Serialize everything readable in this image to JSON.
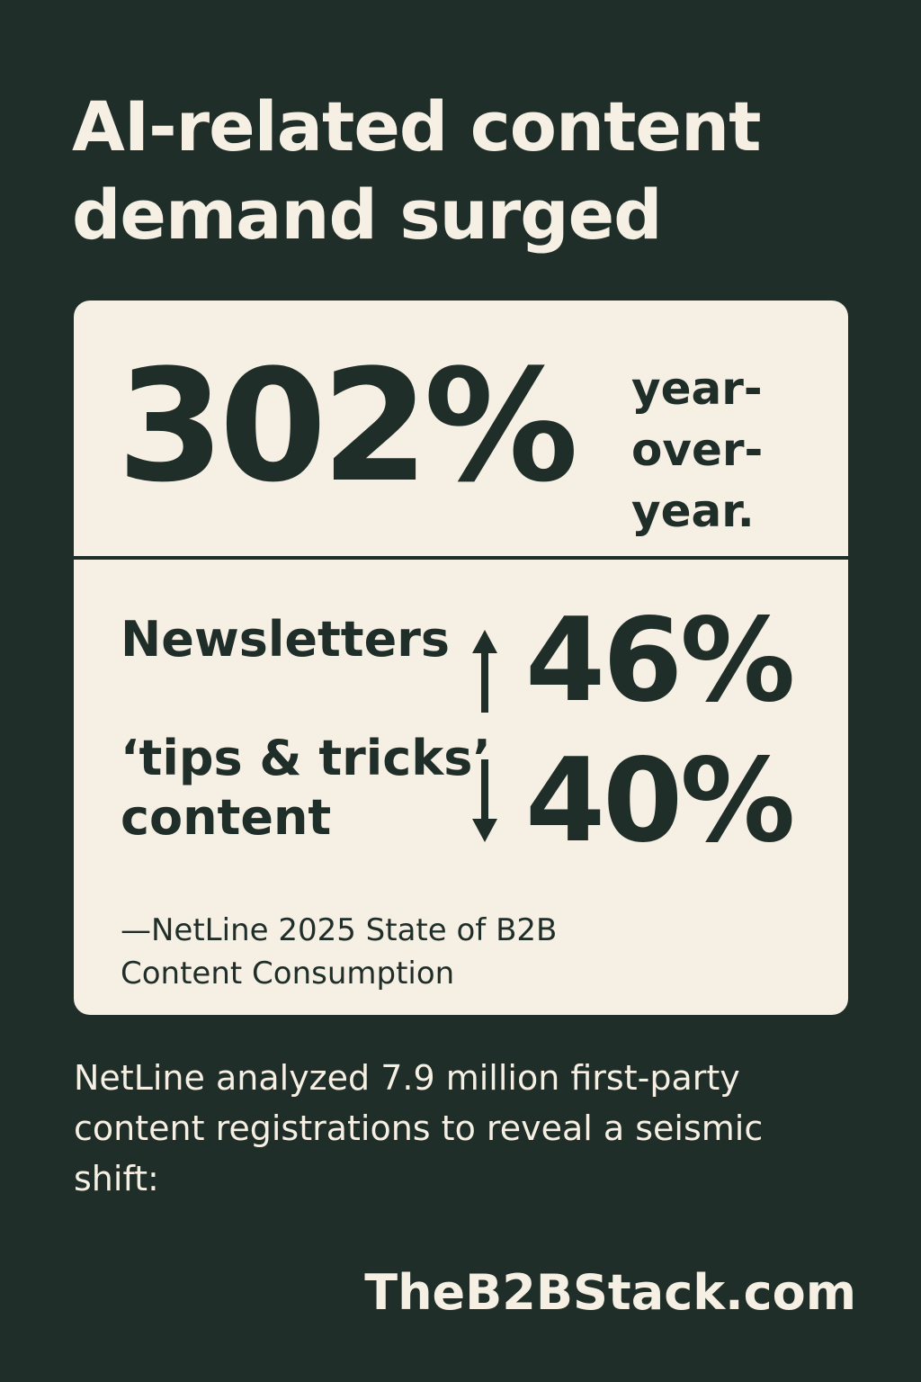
{
  "headline": {
    "line1": "AI-related content",
    "line2": "demand surged"
  },
  "card": {
    "main_stat": {
      "value": "302%",
      "suffix_line1": "year-",
      "suffix_line2": "over-",
      "suffix_line3": "year."
    },
    "stats": [
      {
        "label_line1": "Newsletters",
        "label_line2": "",
        "direction": "up",
        "value": "46%"
      },
      {
        "label_line1": "‘tips & tricks’",
        "label_line2": "content",
        "direction": "down",
        "value": "40%"
      }
    ],
    "source_line1": "—NetLine 2025 State of B2B",
    "source_line2": "Content Consumption"
  },
  "body_text": "NetLine analyzed 7.9 million first-party content registrations to reveal a seismic shift:",
  "site": "TheB2BStack.com",
  "colors": {
    "background": "#1f2e29",
    "card": "#f6efe3",
    "text_dark": "#1f2e29",
    "text_light": "#f6efe3"
  },
  "icons": {
    "up": "arrow-up-icon",
    "down": "arrow-down-icon"
  }
}
